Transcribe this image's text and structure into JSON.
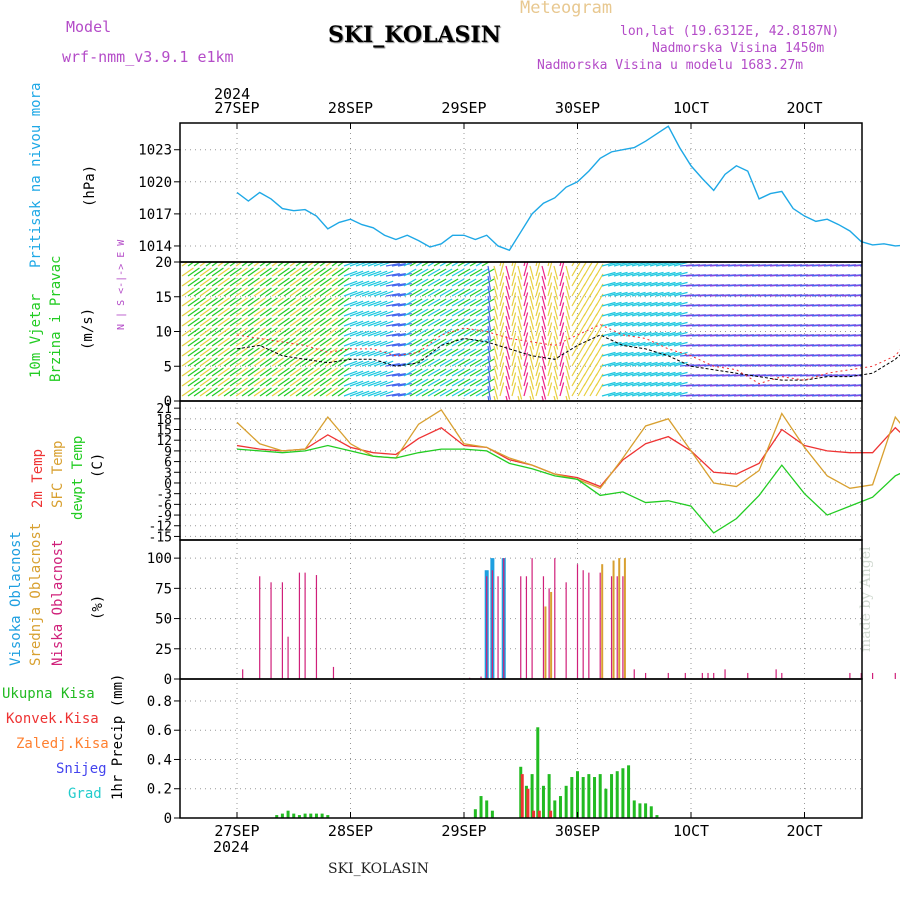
{
  "header": {
    "model_label": "Model",
    "model_name": "wrf-nmm_v3.9.1 e1km",
    "station": "SKI_KOLASIN",
    "product": "Meteogram",
    "lonlat": "lon,lat (19.6312E, 42.8187N)",
    "altitude": "Nadmorska Visina 1450m",
    "model_altitude": "Nadmorska Visina u modelu 1683.27m",
    "year_top": "2024",
    "year_bottom": "2024",
    "footer_station": "SKI_KOLASIN",
    "watermark": "made by Angel"
  },
  "colors": {
    "pressure": "#1ea8e6",
    "wind_speed": "#22cc22",
    "wind_dir": "#b44cc8",
    "temp2m": "#ee3333",
    "sfc_temp": "#d8a030",
    "dewpoint": "#22cc22",
    "high_cloud": "#1e9fe0",
    "mid_cloud": "#d8a030",
    "low_cloud": "#d0207a",
    "precip_total": "#22bb22",
    "precip_conv": "#ee3333",
    "precip_frozen": "#ff8030",
    "snow": "#4444ee",
    "graupel": "#22cccc"
  },
  "chart_data": [
    {
      "type": "line",
      "panel": "pressure",
      "ylabel_main": "Pritisak na nivou mora",
      "ylabel_unit": "(hPa)",
      "xticks": [
        "27SEP",
        "28SEP",
        "29SEP",
        "30SEP",
        "1OCT",
        "2OCT"
      ],
      "yticks": [
        1014,
        1017,
        1020,
        1023
      ],
      "ylim": [
        1012.5,
        1025.5
      ],
      "x": [
        0,
        0.1,
        0.2,
        0.3,
        0.4,
        0.5,
        0.6,
        0.7,
        0.8,
        0.9,
        1.0,
        1.1,
        1.2,
        1.3,
        1.4,
        1.5,
        1.6,
        1.7,
        1.8,
        1.9,
        2.0,
        2.1,
        2.2,
        2.3,
        2.4,
        2.5,
        2.6,
        2.7,
        2.8,
        2.9,
        3.0,
        3.1,
        3.2,
        3.3,
        3.4,
        3.5,
        3.6,
        3.7,
        3.8,
        3.9,
        4.0,
        4.1,
        4.2,
        4.3,
        4.4,
        4.5,
        4.6,
        4.7,
        4.8,
        4.9,
        5.0,
        5.1,
        5.2,
        5.3,
        5.4,
        5.5,
        5.6,
        5.7,
        5.8,
        5.9
      ],
      "values": [
        1019.0,
        1018.2,
        1019.0,
        1018.4,
        1017.5,
        1017.3,
        1017.4,
        1016.8,
        1015.6,
        1016.2,
        1016.5,
        1016.0,
        1015.7,
        1015.0,
        1014.6,
        1015.0,
        1014.5,
        1013.9,
        1014.2,
        1015.0,
        1015.0,
        1014.6,
        1015.0,
        1014.0,
        1013.6,
        1015.3,
        1017.0,
        1018.0,
        1018.5,
        1019.5,
        1020.0,
        1021.0,
        1022.2,
        1022.8,
        1023.0,
        1023.2,
        1023.8,
        1024.5,
        1025.2,
        1023.2,
        1021.5,
        1020.3,
        1019.2,
        1020.7,
        1021.5,
        1021.0,
        1018.4,
        1018.9,
        1019.1,
        1017.5,
        1016.8,
        1016.3,
        1016.5,
        1016.0,
        1015.4,
        1014.4,
        1014.1,
        1014.2,
        1014.0,
        1014.1
      ]
    },
    {
      "type": "line",
      "panel": "wind",
      "ylabel_main": "10m Vjetar",
      "ylabel_sub": "Brzina i Pravac",
      "ylabel_unit": "(m/s)",
      "direction_key": "N | S <-|-> E  W",
      "yticks": [
        0,
        5,
        10,
        15,
        20
      ],
      "ylim": [
        0,
        20
      ],
      "x": [
        0,
        0.2,
        0.4,
        0.6,
        0.8,
        1.0,
        1.2,
        1.4,
        1.6,
        1.8,
        2.0,
        2.2,
        2.4,
        2.6,
        2.8,
        3.0,
        3.2,
        3.4,
        3.6,
        3.8,
        4.0,
        4.2,
        4.4,
        4.6,
        4.8,
        5.0,
        5.2,
        5.4,
        5.6,
        5.8,
        5.9
      ],
      "speed": [
        7.5,
        8.0,
        6.5,
        6.0,
        5.5,
        6.0,
        6.0,
        5.0,
        5.5,
        8.0,
        9.0,
        8.5,
        7.5,
        6.5,
        6.0,
        8.0,
        9.5,
        8.0,
        7.5,
        6.5,
        5.0,
        4.5,
        4.0,
        3.5,
        3.0,
        3.0,
        3.5,
        3.5,
        4.0,
        6.0,
        7.5
      ],
      "gust": [
        9.5,
        9.0,
        8.5,
        8.0,
        7.0,
        7.5,
        7.5,
        6.5,
        7.0,
        9.5,
        10.5,
        10.0,
        9.0,
        8.5,
        8.0,
        9.5,
        11.0,
        9.5,
        9.0,
        7.5,
        6.5,
        5.0,
        4.5,
        2.5,
        3.5,
        3.0,
        4.0,
        4.5,
        5.0,
        6.5,
        8.5
      ]
    },
    {
      "type": "line",
      "panel": "temperature",
      "series_names": [
        "2m Temp",
        "SFC Temp",
        "dewpt Temp"
      ],
      "ylabel_unit": "(C)",
      "yticks": [
        -15,
        -12,
        -9,
        -6,
        -3,
        0,
        3,
        6,
        9,
        12,
        15,
        18,
        21
      ],
      "ylim": [
        -16,
        23
      ],
      "x": [
        0,
        0.2,
        0.4,
        0.6,
        0.8,
        1.0,
        1.2,
        1.4,
        1.6,
        1.8,
        2.0,
        2.2,
        2.4,
        2.6,
        2.8,
        3.0,
        3.2,
        3.4,
        3.6,
        3.8,
        4.0,
        4.2,
        4.4,
        4.6,
        4.8,
        5.0,
        5.2,
        5.4,
        5.6,
        5.8,
        5.9
      ],
      "series": [
        {
          "name": "2m Temp",
          "values": [
            10.5,
            9.5,
            9.0,
            9.5,
            13.5,
            10.0,
            8.5,
            8.0,
            12.5,
            15.5,
            10.5,
            10.0,
            6.5,
            5.0,
            2.5,
            1.5,
            -1.0,
            6.5,
            11.0,
            13.0,
            9.0,
            3.0,
            2.5,
            5.5,
            15.0,
            10.5,
            9.0,
            8.5,
            8.5,
            15.5,
            12.5
          ]
        },
        {
          "name": "SFC Temp",
          "values": [
            17.0,
            11.0,
            9.0,
            9.5,
            18.5,
            11.0,
            7.5,
            7.0,
            16.5,
            20.5,
            11.0,
            10.0,
            7.0,
            5.0,
            2.5,
            1.0,
            -1.5,
            7.0,
            16.0,
            18.0,
            9.0,
            0.0,
            -1.0,
            3.5,
            19.5,
            10.0,
            2.0,
            -1.5,
            -0.5,
            18.5,
            14.5
          ]
        },
        {
          "name": "dewpt Temp",
          "values": [
            9.5,
            9.0,
            8.5,
            9.0,
            10.5,
            9.0,
            7.5,
            7.0,
            8.5,
            9.5,
            9.5,
            9.0,
            5.5,
            4.0,
            2.0,
            1.0,
            -3.5,
            -2.5,
            -5.5,
            -5.0,
            -6.5,
            -14.0,
            -10.0,
            -3.5,
            5.0,
            -3.0,
            -9.0,
            -6.5,
            -4.0,
            2.0,
            3.5
          ]
        }
      ]
    },
    {
      "type": "bar",
      "panel": "cloud",
      "series_names": [
        "Visoka Oblacnost",
        "Srednja Oblacnost",
        "Niska Oblacnost"
      ],
      "ylabel_unit": "(%)",
      "yticks": [
        0,
        25,
        50,
        75,
        100
      ],
      "ylim": [
        0,
        100
      ],
      "x": [
        0.05,
        0.2,
        0.3,
        0.4,
        0.45,
        0.55,
        0.6,
        0.7,
        0.85,
        1.0,
        1.1,
        1.15,
        2.05,
        2.15,
        2.2,
        2.25,
        2.3,
        2.35,
        2.5,
        2.55,
        2.6,
        2.7,
        2.75,
        2.8,
        2.9,
        3.0,
        3.05,
        3.1,
        3.2,
        3.3,
        3.35,
        3.4,
        3.5,
        3.6,
        3.8,
        3.95,
        4.1,
        4.15,
        4.2,
        4.3,
        4.5,
        4.75,
        4.8,
        5.4,
        5.5,
        5.6,
        5.8,
        5.9
      ],
      "series": [
        {
          "name": "Visoka Oblacnost",
          "values": [
            0,
            0,
            0,
            0,
            0,
            0,
            0,
            0,
            0,
            0,
            0,
            0,
            0,
            0,
            90,
            100,
            0,
            100,
            0,
            0,
            0,
            0,
            0,
            0,
            0,
            0,
            0,
            0,
            0,
            0,
            0,
            0,
            0,
            0,
            0,
            0,
            0,
            0,
            0,
            0,
            0,
            0,
            0,
            0,
            0,
            0,
            0,
            0
          ]
        },
        {
          "name": "Srednja Oblacnost",
          "values": [
            0,
            0,
            0,
            0,
            0,
            0,
            0,
            0,
            0,
            0,
            0,
            0,
            0,
            0,
            0,
            0,
            0,
            0,
            0,
            0,
            0,
            60,
            72,
            0,
            0,
            0,
            0,
            0,
            95,
            98,
            100,
            100,
            0,
            0,
            0,
            0,
            0,
            0,
            0,
            0,
            0,
            0,
            0,
            0,
            0,
            0,
            0,
            0
          ]
        },
        {
          "name": "Niska Oblacnost",
          "values": [
            8,
            85,
            80,
            80,
            35,
            88,
            88,
            86,
            10,
            0,
            0,
            0,
            1,
            2,
            85,
            90,
            85,
            100,
            85,
            85,
            100,
            85,
            75,
            100,
            80,
            95,
            90,
            88,
            88,
            85,
            85,
            85,
            8,
            5,
            5,
            5,
            5,
            5,
            5,
            8,
            5,
            8,
            5,
            5,
            5,
            5,
            5,
            2
          ]
        }
      ]
    },
    {
      "type": "bar",
      "panel": "precipitation",
      "series_names": [
        "Ukupna Kisa",
        "Konvek.Kisa",
        "Zaledj.Kisa",
        "Snijeg",
        "Grad"
      ],
      "ylabel_unit": "1hr Precip (mm)",
      "yticks": [
        0,
        0.2,
        0.4,
        0.6,
        0.8
      ],
      "ylim": [
        0,
        0.95
      ],
      "xticks": [
        "27SEP",
        "28SEP",
        "29SEP",
        "30SEP",
        "1OCT",
        "2OCT"
      ],
      "x": [
        0.35,
        0.4,
        0.45,
        0.5,
        0.55,
        0.6,
        0.65,
        0.7,
        0.75,
        0.8,
        2.1,
        2.15,
        2.2,
        2.25,
        2.5,
        2.55,
        2.6,
        2.65,
        2.7,
        2.75,
        2.8,
        2.85,
        2.9,
        2.95,
        3.0,
        3.05,
        3.1,
        3.15,
        3.2,
        3.25,
        3.3,
        3.35,
        3.4,
        3.45,
        3.5,
        3.55,
        3.6,
        3.65,
        3.7
      ],
      "series": [
        {
          "name": "Ukupna Kisa",
          "values": [
            0.02,
            0.03,
            0.05,
            0.03,
            0.02,
            0.03,
            0.03,
            0.03,
            0.03,
            0.02,
            0.06,
            0.15,
            0.12,
            0.05,
            0.35,
            0.22,
            0.3,
            0.62,
            0.22,
            0.3,
            0.12,
            0.15,
            0.22,
            0.28,
            0.32,
            0.28,
            0.3,
            0.28,
            0.3,
            0.2,
            0.3,
            0.32,
            0.34,
            0.36,
            0.12,
            0.1,
            0.1,
            0.08,
            0.02
          ]
        },
        {
          "name": "Konvek.Kisa",
          "values": [
            0,
            0,
            0,
            0,
            0,
            0,
            0,
            0,
            0,
            0,
            0,
            0,
            0,
            0,
            0.3,
            0.2,
            0.05,
            0.05,
            0,
            0.05,
            0,
            0,
            0,
            0,
            0,
            0,
            0,
            0,
            0,
            0,
            0,
            0,
            0,
            0,
            0,
            0,
            0,
            0,
            0
          ]
        }
      ]
    }
  ]
}
